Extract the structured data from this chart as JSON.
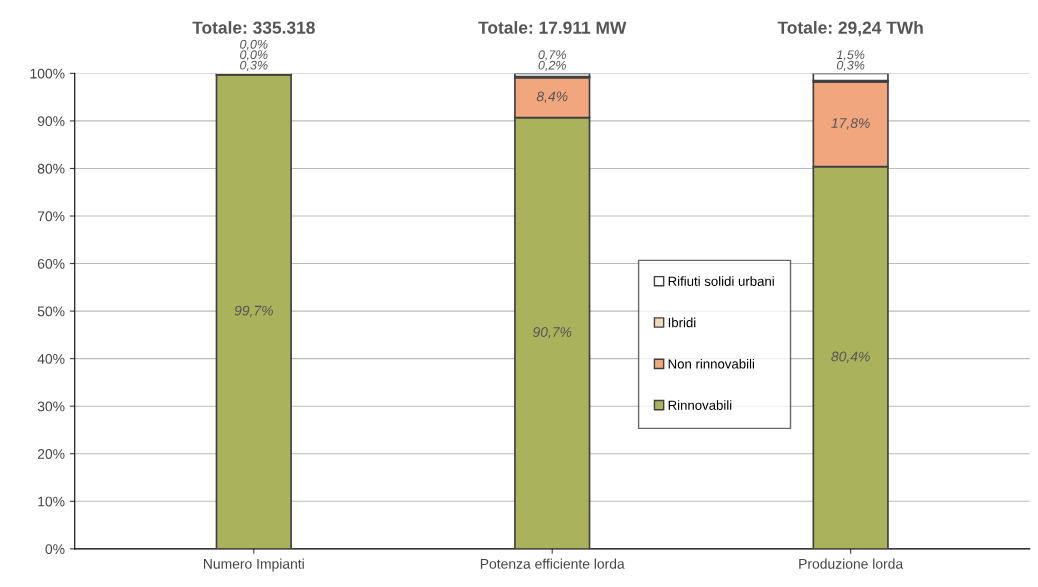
{
  "chart_data": {
    "type": "bar",
    "stacked": true,
    "categories": [
      "Numero Impianti",
      "Potenza efficiente lorda",
      "Produzione lorda"
    ],
    "series": [
      {
        "name": "Rinnovabili",
        "color": "#aab35c",
        "values": [
          99.7,
          90.7,
          80.4
        ],
        "value_labels": [
          "99,7%",
          "90,7%",
          "80,4%"
        ]
      },
      {
        "name": "Non rinnovabili",
        "color": "#f2a67e",
        "values": [
          0.3,
          8.4,
          17.8
        ],
        "value_labels": [
          "0,3%",
          "8,4%",
          "17,8%"
        ]
      },
      {
        "name": "Ibridi",
        "color": "#efd9b8",
        "values": [
          0.0,
          0.2,
          0.3
        ],
        "value_labels": [
          "0,0%",
          "0,2%",
          "0,3%"
        ]
      },
      {
        "name": "Rifiuti solidi urbani",
        "color": "#ffffff",
        "values": [
          0.0,
          0.7,
          1.5
        ],
        "value_labels": [
          "0,0%",
          "0,7%",
          "1,5%"
        ]
      }
    ],
    "annotations": [
      "Totale: 335.318",
      "Totale: 17.911 MW",
      "Totale: 29,24 TWh"
    ],
    "ylim": [
      0,
      100
    ],
    "yticks": [
      {
        "value": 0,
        "label": "0%"
      },
      {
        "value": 10,
        "label": "10%"
      },
      {
        "value": 20,
        "label": "20%"
      },
      {
        "value": 30,
        "label": "30%"
      },
      {
        "value": 40,
        "label": "40%"
      },
      {
        "value": 50,
        "label": "50%"
      },
      {
        "value": 60,
        "label": "60%"
      },
      {
        "value": 70,
        "label": "70%"
      },
      {
        "value": 80,
        "label": "80%"
      },
      {
        "value": 90,
        "label": "90%"
      },
      {
        "value": 100,
        "label": "100%"
      }
    ],
    "grid": "y",
    "legend": "center"
  }
}
